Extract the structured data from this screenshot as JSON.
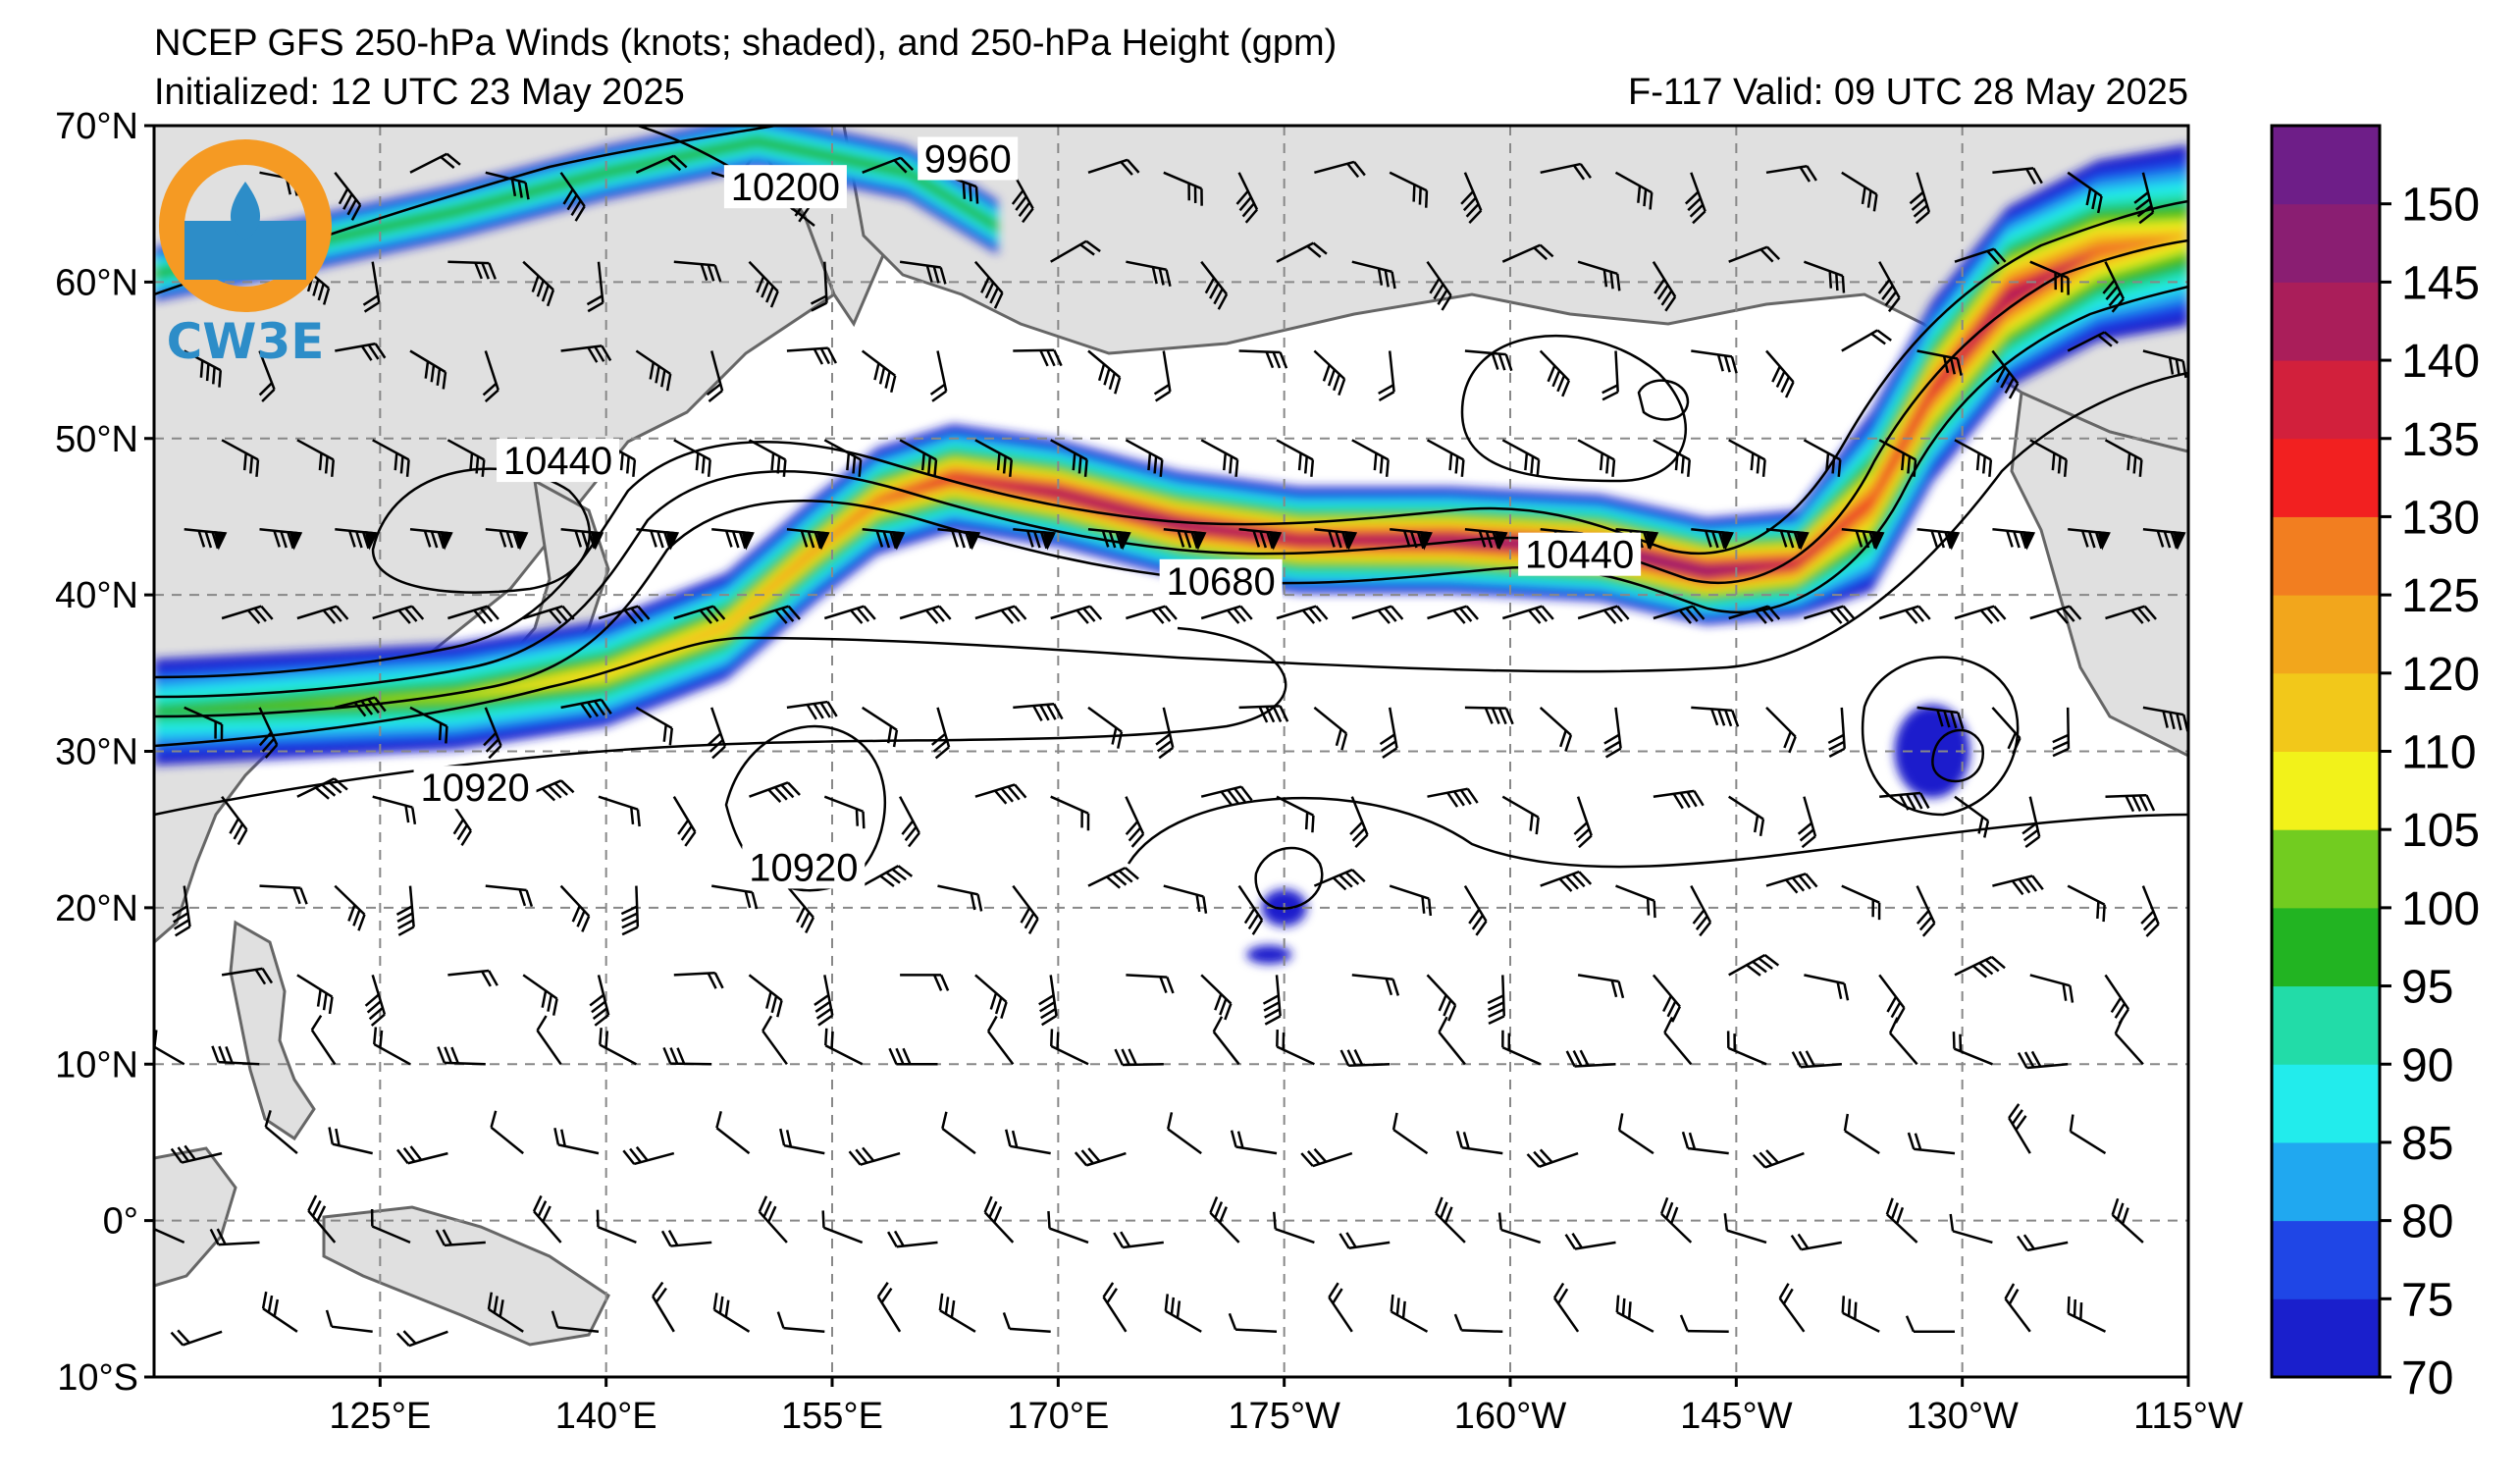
{
  "header": {
    "title": "NCEP GFS 250-hPa Winds (knots; shaded), and 250-hPa Height (gpm)",
    "initialized": "Initialized: 12 UTC 23 May 2025",
    "valid": "F-117  Valid: 09 UTC 28 May 2025"
  },
  "logo": {
    "text": "CW3E",
    "icon": "cw3e-droplet-logo-icon"
  },
  "map": {
    "projection": "cylindrical",
    "lon_range": [
      110,
      245
    ],
    "lat_range": [
      -10,
      70
    ],
    "gridlines": "dashed",
    "lat_ticks": [
      {
        "lat": 70,
        "label": "70°N"
      },
      {
        "lat": 60,
        "label": "60°N"
      },
      {
        "lat": 50,
        "label": "50°N"
      },
      {
        "lat": 40,
        "label": "40°N"
      },
      {
        "lat": 30,
        "label": "30°N"
      },
      {
        "lat": 20,
        "label": "20°N"
      },
      {
        "lat": 10,
        "label": "10°N"
      },
      {
        "lat": 0,
        "label": "0°"
      },
      {
        "lat": -10,
        "label": "10°S"
      }
    ],
    "lon_ticks": [
      {
        "lon": 125,
        "label": "125°E"
      },
      {
        "lon": 140,
        "label": "140°E"
      },
      {
        "lon": 155,
        "label": "155°E"
      },
      {
        "lon": 170,
        "label": "170°E"
      },
      {
        "lon": 185,
        "label": "175°W"
      },
      {
        "lon": 200,
        "label": "160°W"
      },
      {
        "lon": 215,
        "label": "145°W"
      },
      {
        "lon": 230,
        "label": "130°W"
      },
      {
        "lon": 245,
        "label": "115°W"
      }
    ],
    "contour_labels": [
      {
        "text": "9960",
        "lon": 164,
        "lat": 67.9
      },
      {
        "text": "10200",
        "lon": 151.9,
        "lat": 66.1
      },
      {
        "text": "10440",
        "lon": 136.8,
        "lat": 48.6
      },
      {
        "text": "10680",
        "lon": 180.8,
        "lat": 40.9
      },
      {
        "text": "10440",
        "lon": 204.6,
        "lat": 42.6
      },
      {
        "text": "10920",
        "lon": 131.3,
        "lat": 27.7
      },
      {
        "text": "10920",
        "lon": 153.1,
        "lat": 22.6
      }
    ]
  },
  "colorbar": {
    "units": "knots",
    "levels": [
      70,
      75,
      80,
      85,
      90,
      95,
      100,
      105,
      110,
      120,
      125,
      130,
      135,
      140,
      145,
      150
    ],
    "tick_labels": [
      "70",
      "75",
      "80",
      "85",
      "90",
      "95",
      "100",
      "105",
      "110",
      "120",
      "125",
      "130",
      "135",
      "140",
      "145",
      "150"
    ],
    "colors": [
      "#1a1fcc",
      "#1f46e6",
      "#20a8f0",
      "#22ecec",
      "#22dca8",
      "#22b422",
      "#72cc20",
      "#f2f21a",
      "#f2c81a",
      "#f2a61c",
      "#f27e20",
      "#f22020",
      "#d2203c",
      "#aa1e5a",
      "#8a1e72",
      "#6e1e88"
    ]
  },
  "colors": {
    "land": "#e0e0e0",
    "coast": "#666666",
    "grid": "#888888",
    "contour": "#000000"
  }
}
